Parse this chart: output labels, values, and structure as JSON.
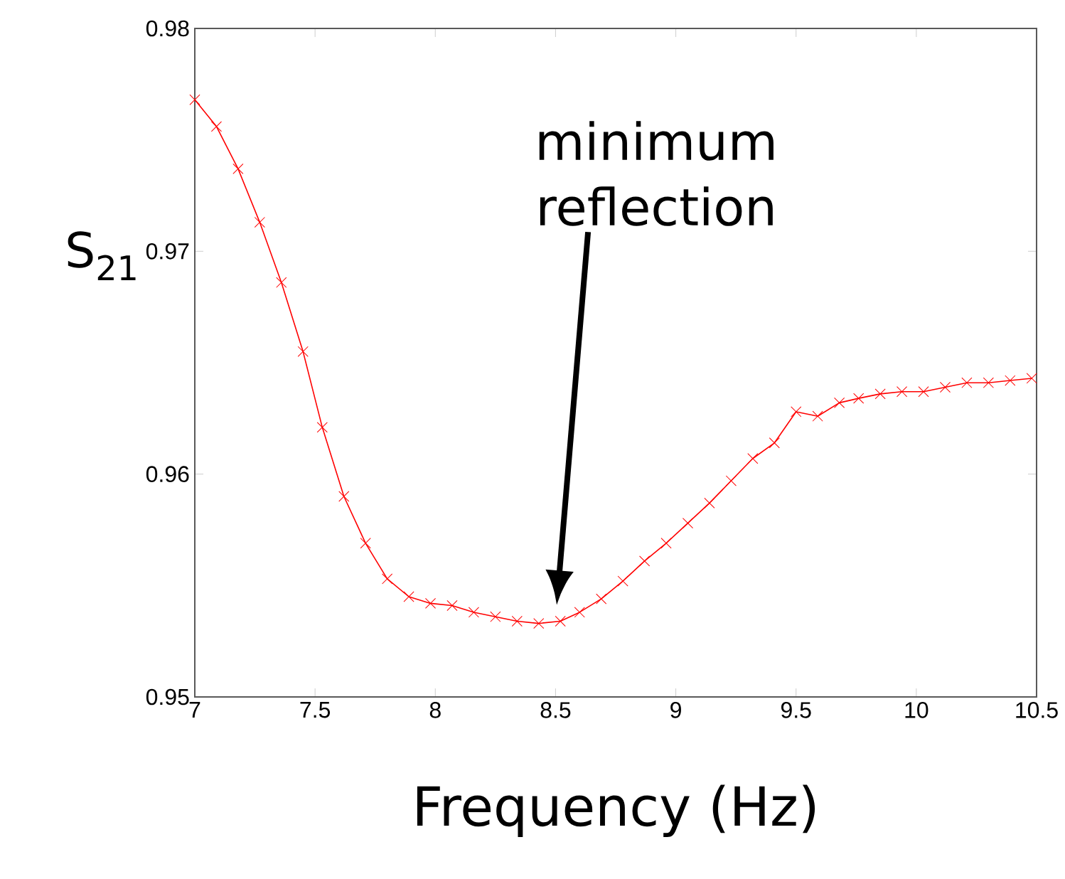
{
  "chart_data": {
    "type": "line",
    "xlabel": "Frequency (Hz)",
    "ylabel": "S$_{21}$",
    "annotations": [
      "minimum reflection"
    ],
    "x": [
      7.0,
      7.09,
      7.18,
      7.27,
      7.36,
      7.45,
      7.53,
      7.62,
      7.71,
      7.8,
      7.89,
      7.98,
      8.07,
      8.16,
      8.25,
      8.34,
      8.43,
      8.52,
      8.6,
      8.69,
      8.78,
      8.87,
      8.96,
      9.05,
      9.14,
      9.23,
      9.32,
      9.41,
      9.5,
      9.59,
      9.68,
      9.76,
      9.85,
      9.94,
      10.03,
      10.12,
      10.21,
      10.3,
      10.39,
      10.48
    ],
    "series": [
      {
        "color": "#ff0000",
        "values": [
          0.9768,
          0.9756,
          0.9737,
          0.9713,
          0.9686,
          0.9655,
          0.9621,
          0.959,
          0.9569,
          0.9553,
          0.9545,
          0.9542,
          0.9541,
          0.9538,
          0.9536,
          0.9534,
          0.9533,
          0.9534,
          0.9538,
          0.9544,
          0.9552,
          0.9561,
          0.9569,
          0.9578,
          0.9587,
          0.9597,
          0.9607,
          0.9614,
          0.9628,
          0.9626,
          0.9632,
          0.9634,
          0.9636,
          0.9637,
          0.9637,
          0.9639,
          0.9641,
          0.9641,
          0.9642,
          0.9643
        ]
      }
    ],
    "xlim": [
      7,
      10.5
    ],
    "ylim": [
      0.95,
      0.98
    ],
    "xticks": [
      7,
      7.5,
      8,
      8.5,
      9,
      9.5,
      10,
      10.5
    ],
    "yticks": [
      0.95,
      0.96,
      0.97,
      0.98
    ],
    "marker": "cross",
    "line_style": "solid"
  }
}
